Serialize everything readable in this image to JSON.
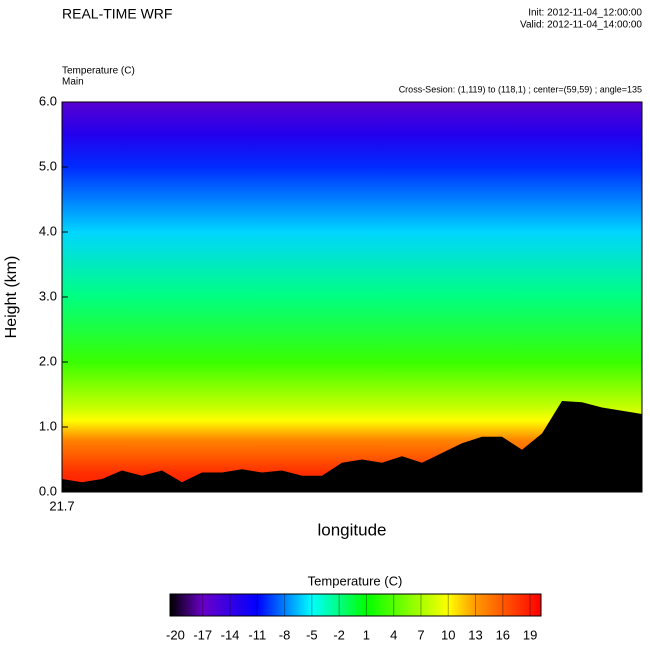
{
  "chart_data": {
    "type": "cross-section",
    "title": "REAL-TIME WRF",
    "init": "Init: 2012-11-04_12:00:00",
    "valid": "Valid: 2012-11-04_14:00:00",
    "field": "Temperature   (C)",
    "subtitle": "Main",
    "section": "Cross-Sesion: (1,119) to (118,1) ; center=(59,59) ; angle=135",
    "ylabel": "Height (km)",
    "xlabel": "longitude",
    "xtick": "21.7",
    "ylim": [
      0,
      6
    ],
    "yticks": [
      {
        "value": 0,
        "label": "0.0"
      },
      {
        "value": 1,
        "label": "1.0"
      },
      {
        "value": 2,
        "label": "2.0"
      },
      {
        "value": 3,
        "label": "3.0"
      },
      {
        "value": 4,
        "label": "4.0"
      },
      {
        "value": 5,
        "label": "5.0"
      },
      {
        "value": 6,
        "label": "6.0"
      }
    ],
    "profile": {
      "heights": [
        0,
        0.3,
        0.8,
        1.1,
        1.3,
        2,
        3,
        4,
        5,
        5.5,
        6
      ],
      "values": [
        19,
        18,
        14,
        10,
        8,
        3,
        -2,
        -6,
        -10,
        -13,
        -16
      ]
    },
    "terrain": [
      0.2,
      0.15,
      0.2,
      0.33,
      0.25,
      0.33,
      0.15,
      0.3,
      0.3,
      0.35,
      0.3,
      0.33,
      0.25,
      0.25,
      0.45,
      0.5,
      0.45,
      0.55,
      0.45,
      0.6,
      0.75,
      0.85,
      0.85,
      0.65,
      0.9,
      1.4,
      1.38,
      1.3,
      1.25,
      1.2
    ],
    "terrain_color": "#000000",
    "colorbar_title": "Temperature   (C)",
    "clim": [
      -20.6,
      20.2
    ],
    "cticks": [
      -20,
      -17,
      -14,
      -11,
      -8,
      -5,
      -2,
      1,
      4,
      7,
      10,
      13,
      16,
      19
    ],
    "colormap": [
      {
        "value": -20.6,
        "color": "#000000"
      },
      {
        "value": -17,
        "color": "#6a00c8"
      },
      {
        "value": -11,
        "color": "#0000ff"
      },
      {
        "value": -5,
        "color": "#00ffff"
      },
      {
        "value": 1,
        "color": "#00ff00"
      },
      {
        "value": 10,
        "color": "#ffff00"
      },
      {
        "value": 13,
        "color": "#ff9900"
      },
      {
        "value": 20.2,
        "color": "#ff0000"
      }
    ]
  }
}
